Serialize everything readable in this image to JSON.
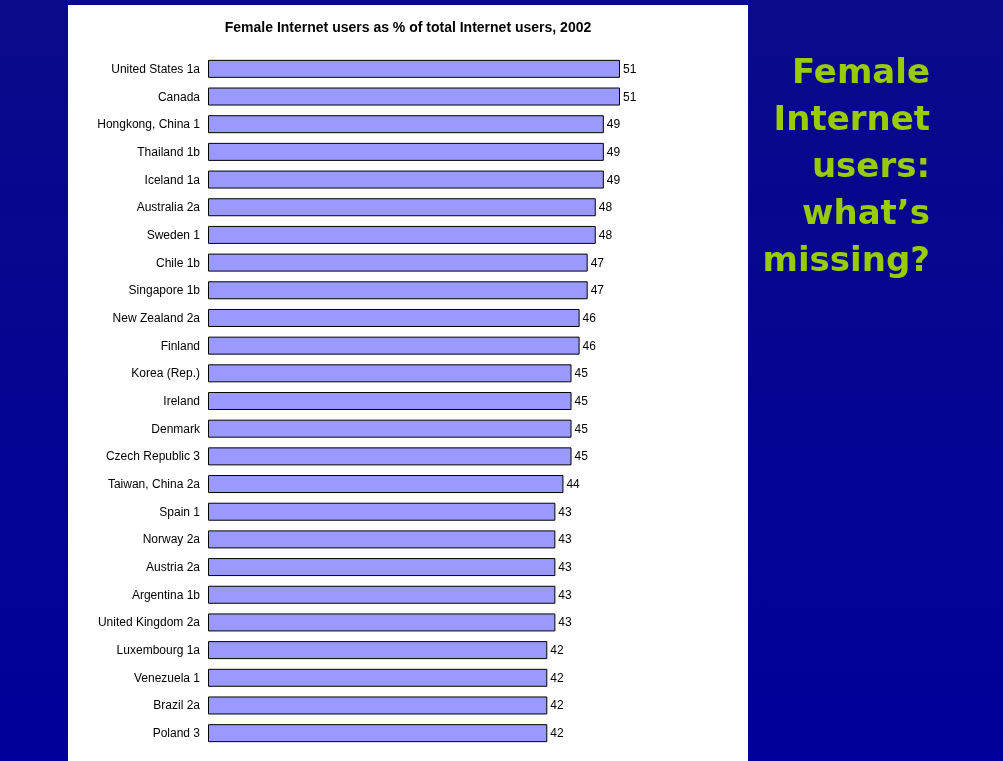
{
  "chart_data": {
    "type": "bar",
    "orientation": "horizontal",
    "title": "Female Internet users as % of total Internet users, 2002",
    "annotations": [
      "Female Internet users: what’s missing?"
    ],
    "categories": [
      "United States 1a",
      "Canada",
      "Hongkong, China 1",
      "Thailand 1b",
      "Iceland 1a",
      "Australia 2a",
      "Sweden 1",
      "Chile 1b",
      "Singapore 1b",
      "New Zealand 2a",
      "Finland",
      "Korea (Rep.)",
      "Ireland",
      "Denmark",
      "Czech Republic 3",
      "Taiwan, China 2a",
      "Spain 1",
      "Norway 2a",
      "Austria 2a",
      "Argentina 1b",
      "United Kingdom 2a",
      "Luxembourg 1a",
      "Venezuela 1",
      "Brazil 2a",
      "Poland 3"
    ],
    "values": [
      51,
      51,
      49,
      49,
      49,
      48,
      48,
      47,
      47,
      46,
      46,
      45,
      45,
      45,
      45,
      44,
      43,
      43,
      43,
      43,
      43,
      42,
      42,
      42,
      42
    ],
    "color": "#9999ff",
    "data_labels": true
  }
}
